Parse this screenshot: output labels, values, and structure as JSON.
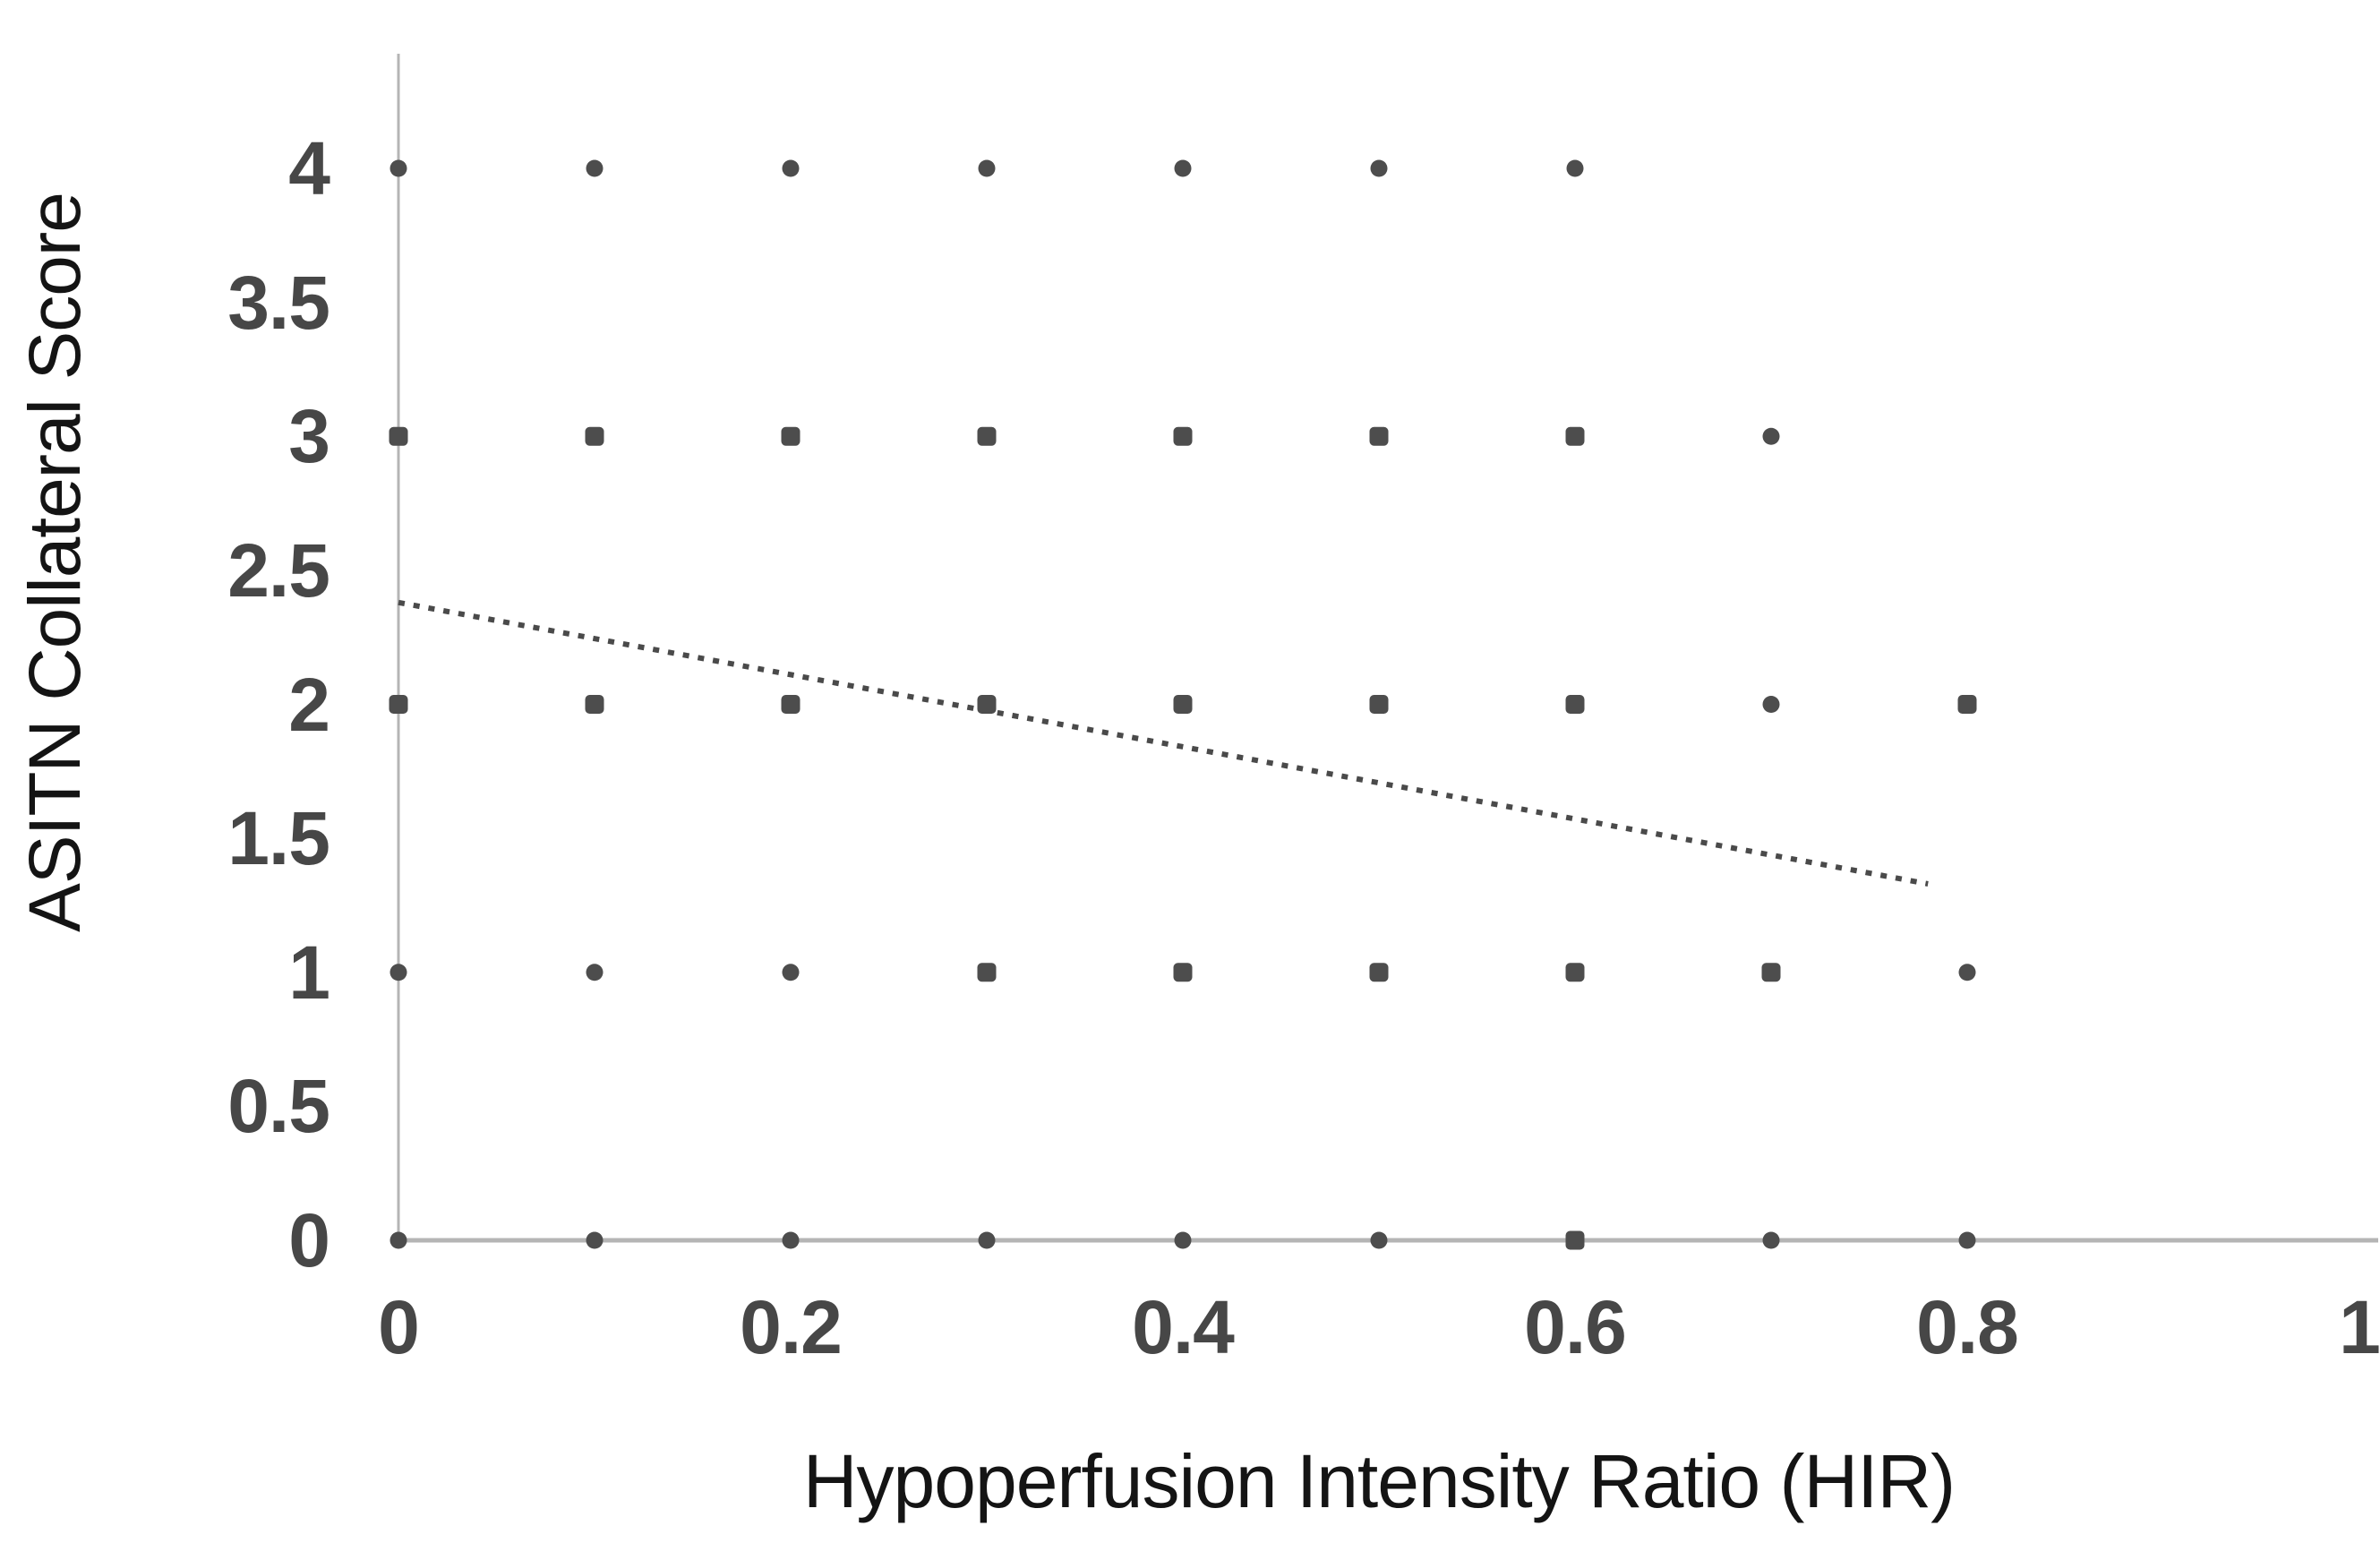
{
  "chart_data": {
    "type": "scatter",
    "title": "",
    "xlabel": "Hypoperfusion Intensity Ratio (HIR)",
    "ylabel": "ASITN Collateral Score",
    "xlim": [
      0,
      1.01
    ],
    "ylim": [
      0,
      4.43
    ],
    "grid": false,
    "legend": "none",
    "x_ticks": {
      "labels": [
        "0",
        "0.2",
        "0.4",
        "0.6",
        "0.8",
        "1"
      ],
      "values": [
        0,
        0.2,
        0.4,
        0.6,
        0.8,
        1
      ]
    },
    "y_ticks": {
      "labels": [
        "0",
        "0.5",
        "1",
        "1.5",
        "2",
        "2.5",
        "3",
        "3.5",
        "4"
      ],
      "values": [
        0,
        0.5,
        1,
        1.5,
        2,
        2.5,
        3,
        3.5,
        4
      ]
    },
    "points": [
      {
        "x": 0.0,
        "y": 4,
        "marker": "circle"
      },
      {
        "x": 0.1,
        "y": 4,
        "marker": "circle"
      },
      {
        "x": 0.2,
        "y": 4,
        "marker": "circle"
      },
      {
        "x": 0.3,
        "y": 4,
        "marker": "circle"
      },
      {
        "x": 0.4,
        "y": 4,
        "marker": "circle"
      },
      {
        "x": 0.5,
        "y": 4,
        "marker": "circle"
      },
      {
        "x": 0.6,
        "y": 4,
        "marker": "circle"
      },
      {
        "x": 0.0,
        "y": 3,
        "marker": "square"
      },
      {
        "x": 0.1,
        "y": 3,
        "marker": "square"
      },
      {
        "x": 0.2,
        "y": 3,
        "marker": "square"
      },
      {
        "x": 0.3,
        "y": 3,
        "marker": "square"
      },
      {
        "x": 0.4,
        "y": 3,
        "marker": "square"
      },
      {
        "x": 0.5,
        "y": 3,
        "marker": "square"
      },
      {
        "x": 0.6,
        "y": 3,
        "marker": "square"
      },
      {
        "x": 0.7,
        "y": 3,
        "marker": "circle"
      },
      {
        "x": 0.0,
        "y": 2,
        "marker": "square"
      },
      {
        "x": 0.1,
        "y": 2,
        "marker": "square"
      },
      {
        "x": 0.2,
        "y": 2,
        "marker": "square"
      },
      {
        "x": 0.3,
        "y": 2,
        "marker": "square"
      },
      {
        "x": 0.4,
        "y": 2,
        "marker": "square"
      },
      {
        "x": 0.5,
        "y": 2,
        "marker": "square"
      },
      {
        "x": 0.6,
        "y": 2,
        "marker": "square"
      },
      {
        "x": 0.7,
        "y": 2,
        "marker": "circle"
      },
      {
        "x": 0.8,
        "y": 2,
        "marker": "square"
      },
      {
        "x": 0.0,
        "y": 1,
        "marker": "circle"
      },
      {
        "x": 0.1,
        "y": 1,
        "marker": "circle"
      },
      {
        "x": 0.2,
        "y": 1,
        "marker": "circle"
      },
      {
        "x": 0.3,
        "y": 1,
        "marker": "square"
      },
      {
        "x": 0.4,
        "y": 1,
        "marker": "square"
      },
      {
        "x": 0.5,
        "y": 1,
        "marker": "square"
      },
      {
        "x": 0.6,
        "y": 1,
        "marker": "square"
      },
      {
        "x": 0.7,
        "y": 1,
        "marker": "square"
      },
      {
        "x": 0.8,
        "y": 1,
        "marker": "circle"
      },
      {
        "x": 0.0,
        "y": 0,
        "marker": "circle"
      },
      {
        "x": 0.1,
        "y": 0,
        "marker": "circle"
      },
      {
        "x": 0.2,
        "y": 0,
        "marker": "circle"
      },
      {
        "x": 0.3,
        "y": 0,
        "marker": "circle"
      },
      {
        "x": 0.4,
        "y": 0,
        "marker": "circle"
      },
      {
        "x": 0.5,
        "y": 0,
        "marker": "circle"
      },
      {
        "x": 0.6,
        "y": 0,
        "marker": "square"
      },
      {
        "x": 0.7,
        "y": 0,
        "marker": "circle"
      },
      {
        "x": 0.8,
        "y": 0,
        "marker": "circle"
      }
    ],
    "trendline": {
      "style": "dotted",
      "x_start": 0.0,
      "y_start": 2.38,
      "x_end": 0.78,
      "y_end": 1.33
    },
    "colors": {
      "marker": "#4d4d4d",
      "trendline": "#4a4a4a",
      "axis_line": "#b5b5b5",
      "tick_label": "#474747",
      "axis_title": "#141414",
      "background": "#ffffff"
    }
  }
}
